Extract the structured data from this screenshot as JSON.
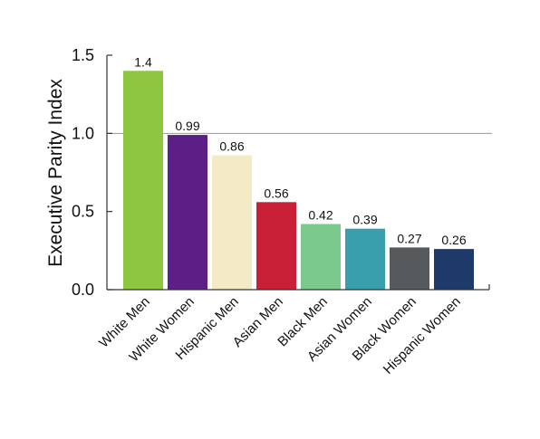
{
  "chart_data": {
    "type": "bar",
    "title": "",
    "xlabel": "",
    "ylabel": "Executive Parity Index",
    "ylim": [
      0,
      1.5
    ],
    "yticks": [
      "0.0",
      "0.5",
      "1.0",
      "1.5"
    ],
    "reference_line": 1.0,
    "categories": [
      "White Men",
      "White Women",
      "Hispanic Men",
      "Asian Men",
      "Black Men",
      "Asian Women",
      "Black Women",
      "Hispanic Women"
    ],
    "values": [
      1.4,
      0.99,
      0.86,
      0.56,
      0.42,
      0.39,
      0.27,
      0.26
    ],
    "value_labels": [
      "1.4",
      "0.99",
      "0.86",
      "0.56",
      "0.42",
      "0.39",
      "0.27",
      "0.26"
    ],
    "colors": [
      "#8dc63f",
      "#5b1f86",
      "#f3ebc6",
      "#c72037",
      "#7cc98e",
      "#3a9fad",
      "#565a5c",
      "#1e3a6b"
    ],
    "grid": false
  }
}
